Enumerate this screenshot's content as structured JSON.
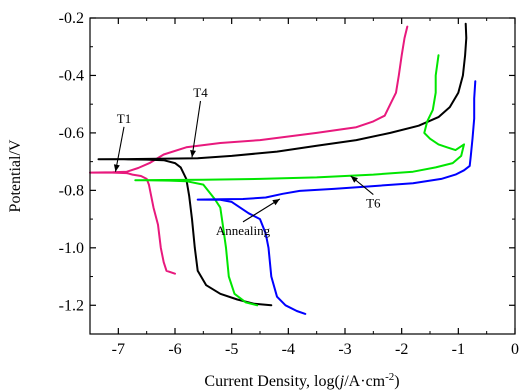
{
  "chart_data": {
    "type": "line",
    "title": "",
    "xlabel": "Current Density, log(j/A·cm⁻²)",
    "xlabel_parts": {
      "prefix": "Current Density, log(",
      "italic": "j",
      "unit": "/A·cm",
      "superscript": "-2",
      "suffix": ")"
    },
    "ylabel": "Potential/V",
    "xlim": [
      -7.5,
      0
    ],
    "ylim": [
      -1.3,
      -0.2
    ],
    "xticks": [
      -7,
      -6,
      -5,
      -4,
      -3,
      -2,
      -1,
      0
    ],
    "xtick_labels": [
      "-7",
      "-6",
      "-5",
      "-4",
      "-3",
      "-2",
      "-1",
      "0"
    ],
    "yticks": [
      -1.2,
      -1.0,
      -0.8,
      -0.6,
      -0.4,
      -0.2
    ],
    "ytick_labels": [
      "-1.2",
      "-1.0",
      "-0.8",
      "-0.6",
      "-0.4",
      "-0.2"
    ],
    "grid": false,
    "legend": "none",
    "series": [
      {
        "label_ref": "T1",
        "color": "#e8197d",
        "points": [
          [
            -6.0,
            -1.09
          ],
          [
            -6.15,
            -1.08
          ],
          [
            -6.2,
            -1.05
          ],
          [
            -6.25,
            -1.0
          ],
          [
            -6.3,
            -0.92
          ],
          [
            -6.38,
            -0.86
          ],
          [
            -6.42,
            -0.82
          ],
          [
            -6.46,
            -0.78
          ],
          [
            -6.5,
            -0.76
          ],
          [
            -6.6,
            -0.75
          ],
          [
            -6.75,
            -0.745
          ],
          [
            -6.85,
            -0.74
          ],
          [
            -7.1,
            -0.738
          ],
          [
            -7.5,
            -0.738
          ],
          [
            -7.1,
            -0.737
          ],
          [
            -6.85,
            -0.735
          ],
          [
            -6.65,
            -0.722
          ],
          [
            -6.45,
            -0.705
          ],
          [
            -6.2,
            -0.675
          ],
          [
            -5.8,
            -0.65
          ],
          [
            -5.2,
            -0.635
          ],
          [
            -4.5,
            -0.625
          ],
          [
            -3.5,
            -0.6
          ],
          [
            -2.8,
            -0.58
          ],
          [
            -2.5,
            -0.56
          ],
          [
            -2.3,
            -0.54
          ],
          [
            -2.2,
            -0.5
          ],
          [
            -2.1,
            -0.46
          ],
          [
            -2.05,
            -0.4
          ],
          [
            -2.0,
            -0.33
          ],
          [
            -1.95,
            -0.27
          ],
          [
            -1.9,
            -0.23
          ]
        ]
      },
      {
        "label_ref": "T4",
        "color": "#000000",
        "points": [
          [
            -4.3,
            -1.2
          ],
          [
            -4.6,
            -1.195
          ],
          [
            -4.9,
            -1.18
          ],
          [
            -5.2,
            -1.16
          ],
          [
            -5.45,
            -1.13
          ],
          [
            -5.6,
            -1.08
          ],
          [
            -5.65,
            -1.0
          ],
          [
            -5.7,
            -0.9
          ],
          [
            -5.75,
            -0.82
          ],
          [
            -5.8,
            -0.76
          ],
          [
            -5.9,
            -0.72
          ],
          [
            -6.0,
            -0.705
          ],
          [
            -6.2,
            -0.695
          ],
          [
            -6.5,
            -0.693
          ],
          [
            -6.9,
            -0.692
          ],
          [
            -7.35,
            -0.692
          ],
          [
            -6.9,
            -0.691
          ],
          [
            -6.3,
            -0.69
          ],
          [
            -5.6,
            -0.688
          ],
          [
            -5.0,
            -0.68
          ],
          [
            -4.2,
            -0.665
          ],
          [
            -3.5,
            -0.645
          ],
          [
            -2.8,
            -0.625
          ],
          [
            -2.2,
            -0.6
          ],
          [
            -1.7,
            -0.575
          ],
          [
            -1.35,
            -0.545
          ],
          [
            -1.15,
            -0.51
          ],
          [
            -1.0,
            -0.46
          ],
          [
            -0.92,
            -0.4
          ],
          [
            -0.88,
            -0.33
          ],
          [
            -0.86,
            -0.27
          ],
          [
            -0.87,
            -0.22
          ]
        ]
      },
      {
        "label_ref": "Annealing",
        "color": "#00e600",
        "points": [
          [
            -4.55,
            -1.2
          ],
          [
            -4.75,
            -1.19
          ],
          [
            -4.95,
            -1.16
          ],
          [
            -5.05,
            -1.1
          ],
          [
            -5.1,
            -1.0
          ],
          [
            -5.15,
            -0.93
          ],
          [
            -5.2,
            -0.86
          ],
          [
            -5.3,
            -0.83
          ],
          [
            -5.5,
            -0.78
          ],
          [
            -5.8,
            -0.768
          ],
          [
            -6.1,
            -0.766
          ],
          [
            -6.5,
            -0.765
          ],
          [
            -6.7,
            -0.765
          ],
          [
            -6.2,
            -0.764
          ],
          [
            -5.5,
            -0.763
          ],
          [
            -4.5,
            -0.76
          ],
          [
            -3.5,
            -0.755
          ],
          [
            -2.5,
            -0.745
          ],
          [
            -1.8,
            -0.735
          ],
          [
            -1.4,
            -0.72
          ],
          [
            -1.1,
            -0.705
          ],
          [
            -0.95,
            -0.68
          ],
          [
            -0.9,
            -0.64
          ],
          [
            -1.05,
            -0.66
          ],
          [
            -1.2,
            -0.65
          ],
          [
            -1.35,
            -0.64
          ],
          [
            -1.5,
            -0.62
          ],
          [
            -1.6,
            -0.6
          ],
          [
            -1.55,
            -0.56
          ],
          [
            -1.45,
            -0.52
          ],
          [
            -1.4,
            -0.46
          ],
          [
            -1.4,
            -0.4
          ],
          [
            -1.35,
            -0.33
          ]
        ]
      },
      {
        "label_ref": "T6",
        "color": "#0000ff",
        "points": [
          [
            -3.7,
            -1.23
          ],
          [
            -3.85,
            -1.22
          ],
          [
            -4.05,
            -1.2
          ],
          [
            -4.2,
            -1.17
          ],
          [
            -4.3,
            -1.1
          ],
          [
            -4.35,
            -1.0
          ],
          [
            -4.4,
            -0.95
          ],
          [
            -4.5,
            -0.9
          ],
          [
            -4.7,
            -0.88
          ],
          [
            -5.0,
            -0.84
          ],
          [
            -5.2,
            -0.833
          ],
          [
            -5.6,
            -0.832
          ],
          [
            -5.2,
            -0.831
          ],
          [
            -4.8,
            -0.83
          ],
          [
            -4.4,
            -0.825
          ],
          [
            -4.1,
            -0.812
          ],
          [
            -3.8,
            -0.802
          ],
          [
            -3.2,
            -0.795
          ],
          [
            -2.5,
            -0.785
          ],
          [
            -1.8,
            -0.775
          ],
          [
            -1.3,
            -0.76
          ],
          [
            -1.05,
            -0.745
          ],
          [
            -0.9,
            -0.73
          ],
          [
            -0.8,
            -0.715
          ],
          [
            -0.78,
            -0.68
          ],
          [
            -0.75,
            -0.62
          ],
          [
            -0.72,
            -0.55
          ],
          [
            -0.72,
            -0.48
          ],
          [
            -0.7,
            -0.42
          ]
        ]
      }
    ],
    "annotations": [
      {
        "text": "T1",
        "x": -6.9,
        "y": -0.565,
        "arrow_to": [
          -7.05,
          -0.735
        ]
      },
      {
        "text": "T4",
        "x": -5.55,
        "y": -0.475,
        "arrow_to": [
          -5.7,
          -0.685
        ]
      },
      {
        "text": "Annealing",
        "x": -4.8,
        "y": -0.955,
        "arrow_to": [
          -4.15,
          -0.83
        ]
      },
      {
        "text": "T6",
        "x": -2.5,
        "y": -0.86,
        "arrow_to": [
          -2.9,
          -0.75
        ]
      }
    ]
  }
}
